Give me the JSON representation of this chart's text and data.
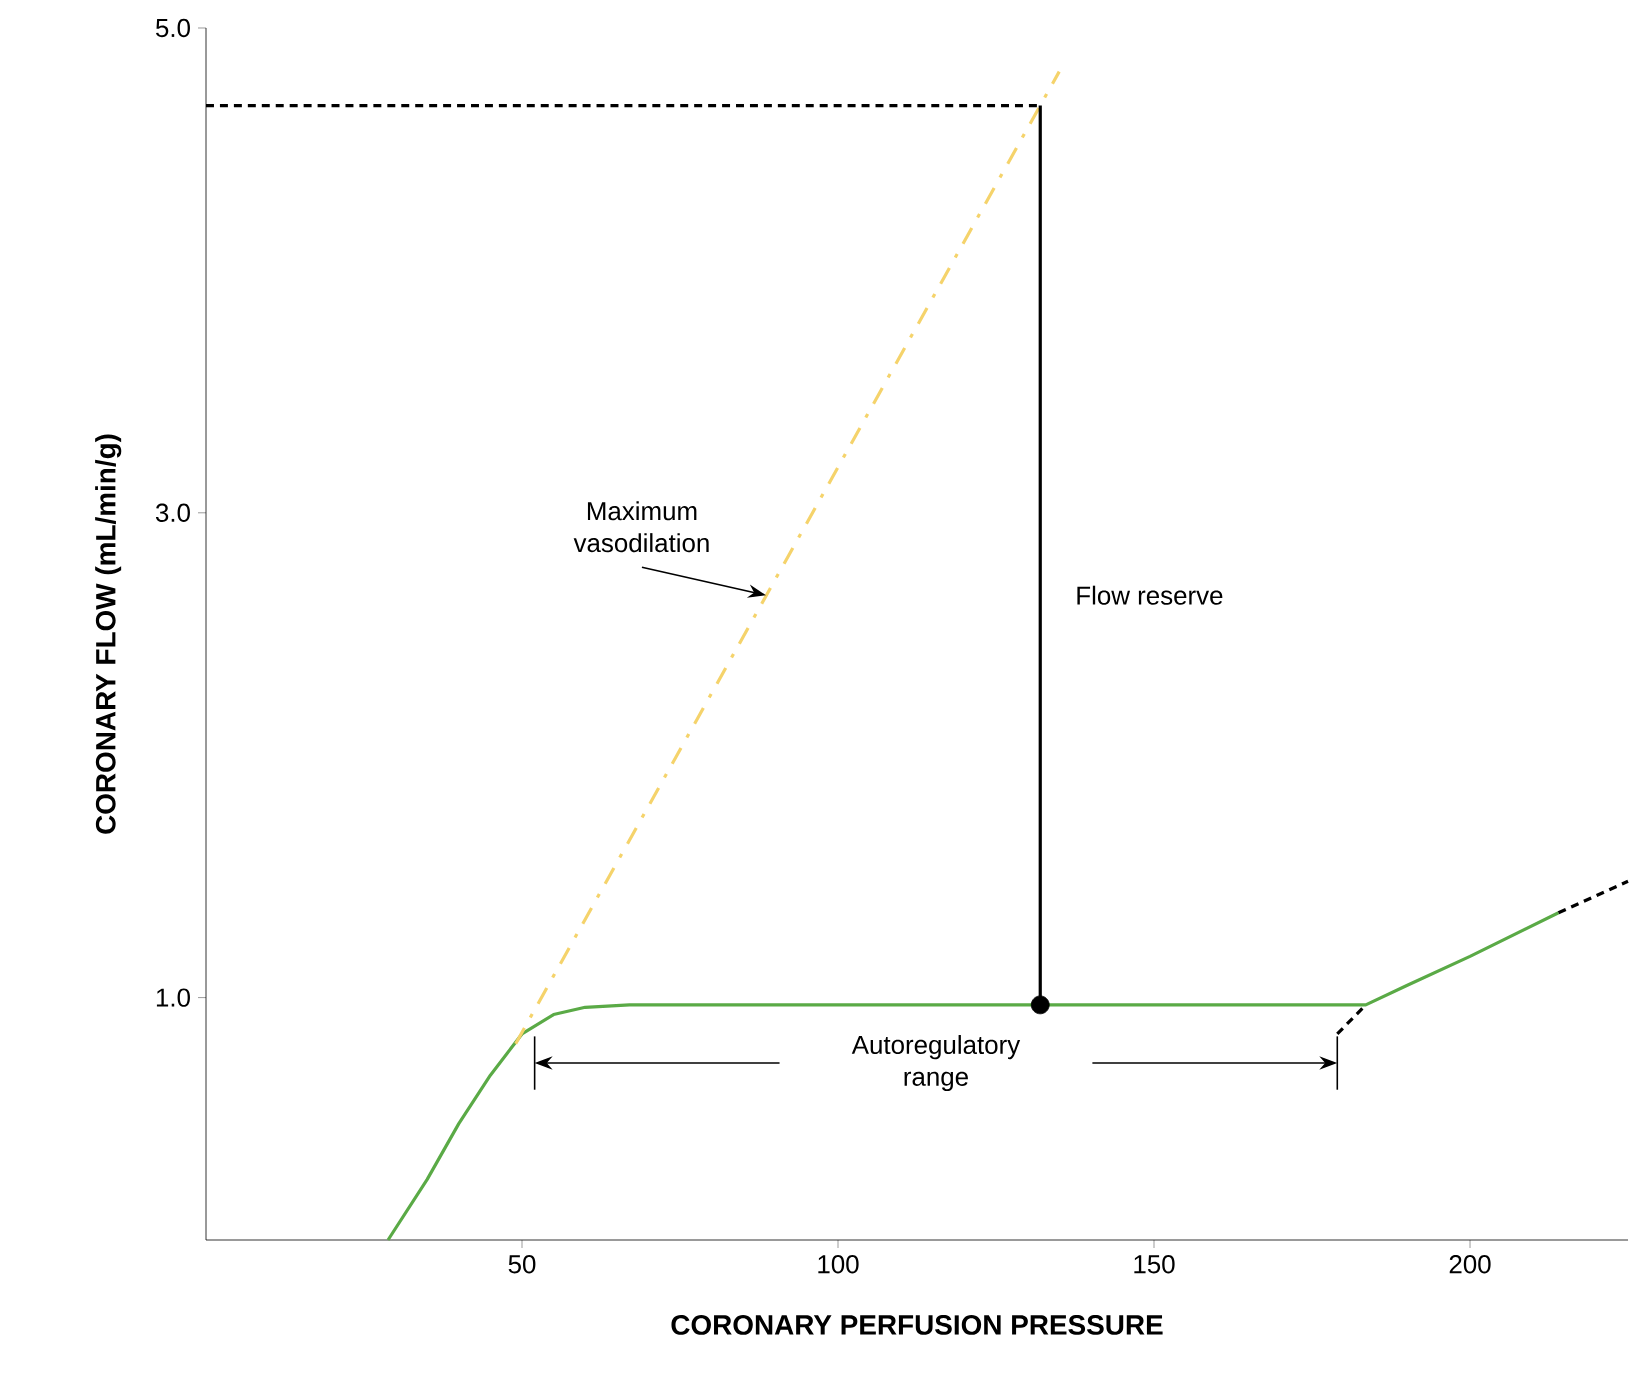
{
  "chart_data": {
    "type": "line",
    "xlabel": "CORONARY PERFUSION PRESSURE",
    "ylabel": "CORONARY FLOW (mL/min/g)",
    "xlim": [
      0,
      225
    ],
    "ylim": [
      0,
      5
    ],
    "xticks": [
      50,
      100,
      150,
      200
    ],
    "yticks": [
      {
        "value": 1,
        "label": "1.0"
      },
      {
        "value": 3,
        "label": "3.0"
      },
      {
        "value": 5,
        "label": "5.0"
      }
    ],
    "series": [
      {
        "color": "#5aaa46",
        "line_style": "solid",
        "x": [
          28.8,
          35,
          40,
          45,
          50,
          55,
          60,
          67,
          80,
          100,
          132,
          150,
          175,
          183.5,
          190,
          200,
          214
        ],
        "values": [
          0,
          0.25,
          0.48,
          0.68,
          0.85,
          0.93,
          0.96,
          0.97,
          0.97,
          0.97,
          0.97,
          0.97,
          0.97,
          0.97,
          1.05,
          1.17,
          1.35
        ]
      },
      {
        "color": "#f5d36b",
        "line_style": "dashdotted",
        "x": [
          49,
          135
        ],
        "values": [
          0.81,
          4.82
        ]
      },
      {
        "color": "#000000",
        "line_style": "dashed",
        "x": [
          179,
          183.5
        ],
        "values": [
          0.85,
          0.97
        ]
      },
      {
        "color": "#000000",
        "line_style": "dashed",
        "x": [
          214,
          225
        ],
        "values": [
          1.35,
          1.48
        ]
      },
      {
        "color": "#000000",
        "line_style": "dashed",
        "x": [
          0,
          132
        ],
        "values": [
          4.68,
          4.68
        ]
      },
      {
        "color": "#000000",
        "line_style": "solid",
        "x": [
          132,
          132
        ],
        "values": [
          0.97,
          4.68
        ]
      },
      {
        "type": "scatter",
        "color": "#000000",
        "marker": "circle",
        "x": [
          132
        ],
        "values": [
          0.97
        ]
      },
      {
        "color": "#000000",
        "line_style": "solid",
        "x": [
          52,
          52
        ],
        "values": [
          0.62,
          0.84
        ]
      },
      {
        "color": "#000000",
        "line_style": "solid",
        "x": [
          179,
          179
        ],
        "values": [
          0.62,
          0.84
        ]
      }
    ],
    "annotations": [
      {
        "text": "Maximum vasodilation",
        "x": 88.6,
        "y": 2.66
      },
      {
        "text": "Flow reserve",
        "x": 132,
        "y": 2.66
      },
      "Autoregulatory range"
    ]
  }
}
